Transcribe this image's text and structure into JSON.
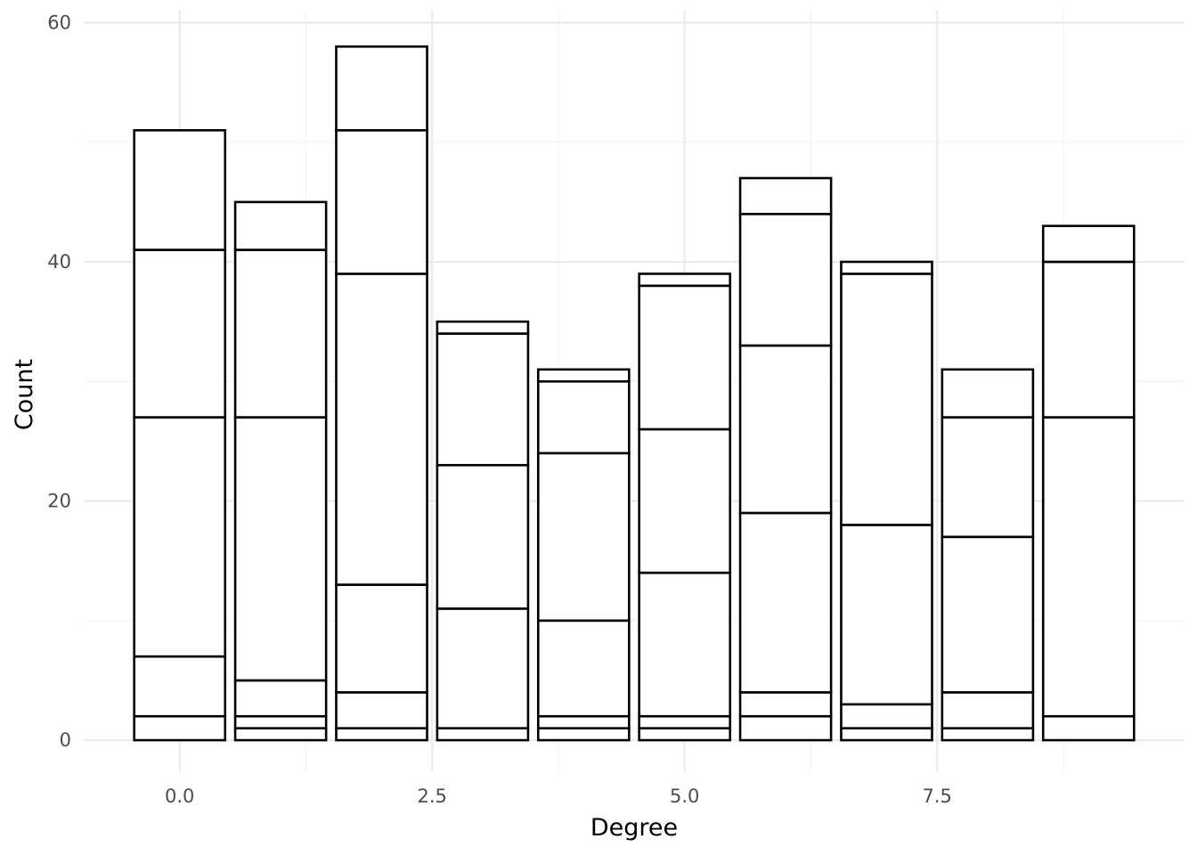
{
  "chart_data": {
    "type": "bar",
    "stacked": true,
    "xlabel": "Degree",
    "ylabel": "Count",
    "x": [
      0,
      1,
      2,
      3,
      4,
      5,
      6,
      7,
      8,
      9
    ],
    "stack_boundaries": [
      [
        2,
        7,
        27,
        41,
        51
      ],
      [
        1,
        2,
        5,
        27,
        41,
        45
      ],
      [
        1,
        4,
        13,
        39,
        51,
        58
      ],
      [
        1,
        11,
        23,
        34,
        35
      ],
      [
        1,
        2,
        10,
        24,
        30,
        31
      ],
      [
        1,
        2,
        14,
        26,
        38,
        39
      ],
      [
        2,
        4,
        19,
        33,
        44,
        47
      ],
      [
        1,
        3,
        18,
        39,
        40
      ],
      [
        1,
        4,
        17,
        27,
        31
      ],
      [
        2,
        27,
        40,
        43
      ]
    ],
    "totals": [
      51,
      45,
      58,
      35,
      31,
      39,
      47,
      40,
      31,
      43
    ],
    "xlim": [
      -0.95,
      9.95
    ],
    "ylim": [
      -2.6,
      61
    ],
    "x_ticks": [
      0.0,
      2.5,
      5.0,
      7.5
    ],
    "x_tick_labels": [
      "0.0",
      "2.5",
      "5.0",
      "7.5"
    ],
    "y_ticks": [
      0,
      20,
      40,
      60
    ],
    "y_tick_labels": [
      "0",
      "20",
      "40",
      "60"
    ],
    "grid": true,
    "legend": "none",
    "colors": {
      "fill": "#ffffff",
      "outline": "#000000",
      "grid": "#ebebeb",
      "tick_text": "#4d4d4d"
    }
  }
}
